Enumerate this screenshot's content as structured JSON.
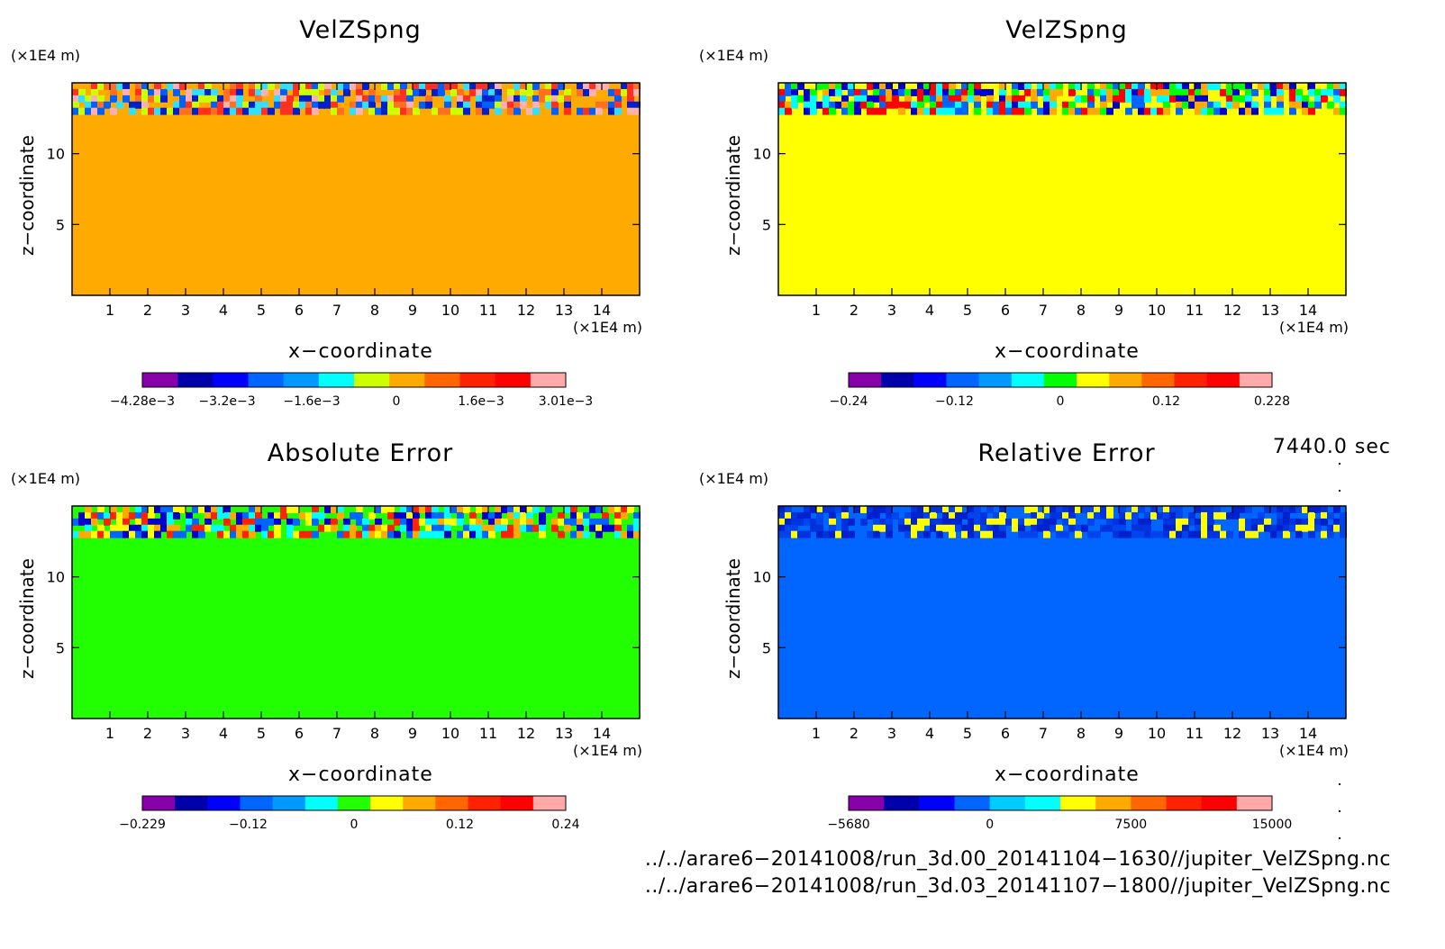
{
  "chart_data": [
    {
      "type": "heatmap",
      "title": "VelZSpng",
      "xlabel": "x−coordinate",
      "ylabel": "z−coordinate",
      "x_unit": "(×1E4 m)",
      "y_unit": "(×1E4 m)",
      "xlim": [
        0,
        15
      ],
      "ylim": [
        0,
        15
      ],
      "x_ticks": [
        "1",
        "2",
        "3",
        "4",
        "5",
        "6",
        "7",
        "8",
        "9",
        "10",
        "11",
        "12",
        "13",
        "14"
      ],
      "y_ticks": [
        "5",
        "10"
      ],
      "background_color": "#ffaa00",
      "band_colors": [
        "#ff3020",
        "#ff7020",
        "#ccff00",
        "#30e0ff",
        "#0060ff",
        "#0020cc",
        "#ffb0b0"
      ],
      "colorbar": {
        "colors": [
          "#8800aa",
          "#0000aa",
          "#0000ff",
          "#0066ff",
          "#0099ff",
          "#00ffff",
          "#ccff00",
          "#ffaa00",
          "#ff6600",
          "#ff2200",
          "#ff0000",
          "#ffaaaa"
        ],
        "tick_labels": [
          "−4.28e−3",
          "−3.2e−3",
          "−1.6e−3",
          "0",
          "1.6e−3",
          "3.01e−3"
        ]
      }
    },
    {
      "type": "heatmap",
      "title": "VelZSpng",
      "xlabel": "x−coordinate",
      "ylabel": "z−coordinate",
      "x_unit": "(×1E4 m)",
      "y_unit": "(×1E4 m)",
      "xlim": [
        0,
        15
      ],
      "ylim": [
        0,
        15
      ],
      "x_ticks": [
        "1",
        "2",
        "3",
        "4",
        "5",
        "6",
        "7",
        "8",
        "9",
        "10",
        "11",
        "12",
        "13",
        "14"
      ],
      "y_ticks": [
        "5",
        "10"
      ],
      "background_color": "#ffff00",
      "band_colors": [
        "#00ff00",
        "#0066ff",
        "#0000cc",
        "#00ffff",
        "#ff0000",
        "#ffaa00"
      ],
      "colorbar": {
        "colors": [
          "#8800aa",
          "#0000aa",
          "#0000ff",
          "#0066ff",
          "#0099ff",
          "#00ffff",
          "#00ff00",
          "#ffff00",
          "#ffaa00",
          "#ff6600",
          "#ff2200",
          "#ff0000",
          "#ffaaaa"
        ],
        "tick_labels": [
          "−0.24",
          "−0.12",
          "0",
          "0.12",
          "0.228"
        ]
      }
    },
    {
      "type": "heatmap",
      "title": "Absolute Error",
      "xlabel": "x−coordinate",
      "ylabel": "z−coordinate",
      "x_unit": "(×1E4 m)",
      "y_unit": "(×1E4 m)",
      "xlim": [
        0,
        15
      ],
      "ylim": [
        0,
        15
      ],
      "x_ticks": [
        "1",
        "2",
        "3",
        "4",
        "5",
        "6",
        "7",
        "8",
        "9",
        "10",
        "11",
        "12",
        "13",
        "14"
      ],
      "y_ticks": [
        "5",
        "10"
      ],
      "background_color": "#22ff00",
      "band_colors": [
        "#ffaa00",
        "#ff2200",
        "#00ffff",
        "#0066ff",
        "#ffff00",
        "#0000cc"
      ],
      "colorbar": {
        "colors": [
          "#8800aa",
          "#0000aa",
          "#0000ff",
          "#0066ff",
          "#0099ff",
          "#00ffff",
          "#22ff00",
          "#ffff00",
          "#ffaa00",
          "#ff6600",
          "#ff2200",
          "#ff0000",
          "#ffaaaa"
        ],
        "tick_labels": [
          "−0.229",
          "−0.12",
          "0",
          "0.12",
          "0.24"
        ]
      }
    },
    {
      "type": "heatmap",
      "title": "Relative Error",
      "xlabel": "x−coordinate",
      "ylabel": "z−coordinate",
      "x_unit": "(×1E4 m)",
      "y_unit": "(×1E4 m)",
      "xlim": [
        0,
        15
      ],
      "ylim": [
        0,
        15
      ],
      "x_ticks": [
        "1",
        "2",
        "3",
        "4",
        "5",
        "6",
        "7",
        "8",
        "9",
        "10",
        "11",
        "12",
        "13",
        "14"
      ],
      "y_ticks": [
        "5",
        "10"
      ],
      "background_color": "#0066ff",
      "band_colors": [
        "#0033dd",
        "#0044ee",
        "#0022cc",
        "#ffff00"
      ],
      "colorbar": {
        "colors": [
          "#8800aa",
          "#0000aa",
          "#0000ff",
          "#0066ff",
          "#00ccff",
          "#00ffff",
          "#ffff00",
          "#ffaa00",
          "#ff6600",
          "#ff2200",
          "#ff0000",
          "#ffaaaa"
        ],
        "tick_labels": [
          "−5680",
          "0",
          "7500",
          "15000"
        ]
      }
    }
  ],
  "time_label": "7440.0 sec",
  "footer": {
    "file1": "../../arare6−20141008/run_3d.00_20141104−1630//jupiter_VelZSpng.nc",
    "file2": "../../arare6−20141008/run_3d.03_20141107−1800//jupiter_VelZSpng.nc"
  }
}
